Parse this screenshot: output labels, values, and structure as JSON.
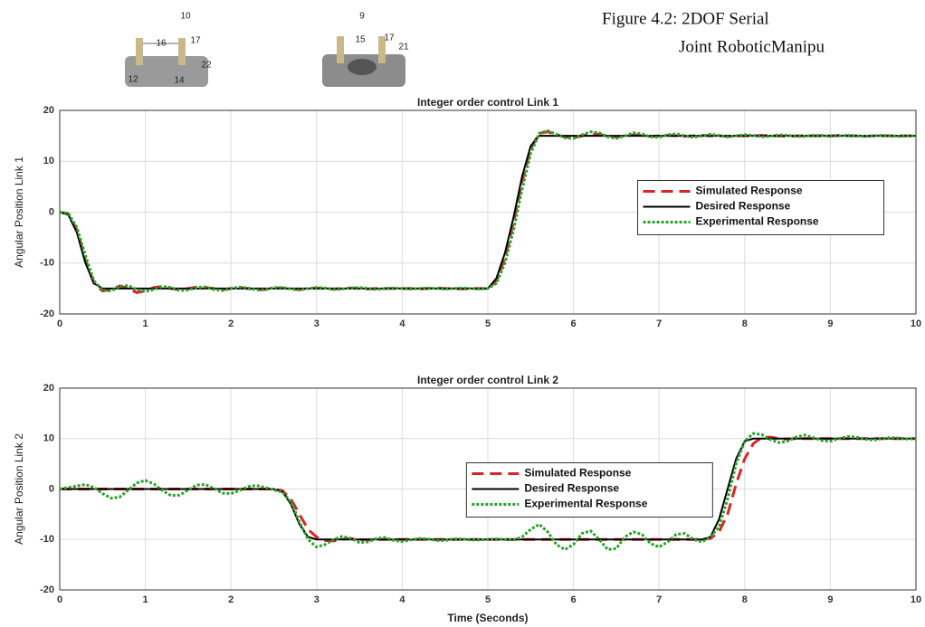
{
  "caption": [
    "Figure 4.2: 2DOF Serial",
    "Joint RoboticManipu"
  ],
  "figure_fragment": {
    "labels": [
      "10",
      "16",
      "17",
      "22",
      "12",
      "14",
      "9",
      "15",
      "17",
      "21"
    ]
  },
  "chart_data": [
    {
      "type": "line",
      "title": "Integer order control Link 1",
      "ylabel": "Angular Position Link 1",
      "x": [
        0,
        0.1,
        0.2,
        0.3,
        0.4,
        0.5,
        0.6,
        0.7,
        0.8,
        0.9,
        1,
        1.1,
        1.2,
        1.3,
        1.4,
        1.5,
        1.6,
        1.7,
        1.8,
        1.9,
        2,
        2.1,
        2.2,
        2.3,
        2.4,
        2.5,
        2.6,
        2.7,
        2.8,
        2.9,
        3,
        3.1,
        3.2,
        3.3,
        3.4,
        3.5,
        3.6,
        3.7,
        3.8,
        3.9,
        4,
        4.1,
        4.2,
        4.3,
        4.4,
        4.5,
        4.6,
        4.7,
        4.8,
        4.9,
        5,
        5.1,
        5.2,
        5.3,
        5.4,
        5.5,
        5.6,
        5.7,
        5.8,
        5.9,
        6,
        6.1,
        6.2,
        6.3,
        6.4,
        6.5,
        6.6,
        6.7,
        6.8,
        6.9,
        7,
        7.1,
        7.2,
        7.3,
        7.4,
        7.5,
        7.6,
        7.7,
        7.8,
        7.9,
        8,
        8.1,
        8.2,
        8.3,
        8.4,
        8.5,
        8.6,
        8.7,
        8.8,
        8.9,
        9,
        9.1,
        9.2,
        9.3,
        9.4,
        9.5,
        9.6,
        9.7,
        9.8,
        9.9,
        10
      ],
      "series": [
        {
          "name": "Simulated Response",
          "color": "#d62728",
          "linestyle": "dashed",
          "values": [
            0,
            -0.3,
            -3.5,
            -9.5,
            -14,
            -15.5,
            -15.2,
            -14.5,
            -15,
            -15.8,
            -15.5,
            -14.8,
            -14.6,
            -15,
            -15.3,
            -15,
            -14.7,
            -14.8,
            -15,
            -15.2,
            -15,
            -14.8,
            -15,
            -15.3,
            -15.2,
            -14.9,
            -14.9,
            -15.1,
            -15.2,
            -15,
            -14.9,
            -15,
            -15.1,
            -15,
            -14.9,
            -15,
            -15.1,
            -15,
            -15,
            -15,
            -15,
            -15,
            -15.1,
            -15,
            -14.9,
            -15,
            -15,
            -15.1,
            -15,
            -15,
            -15,
            -13.5,
            -9,
            -2,
            6,
            12.5,
            15.5,
            15.8,
            15.2,
            14.8,
            14.6,
            15,
            15.4,
            15.3,
            14.9,
            14.8,
            15,
            15.2,
            15.1,
            14.9,
            15,
            15.1,
            15,
            14.9,
            15,
            15.1,
            15,
            15,
            14.9,
            15,
            15,
            15,
            15.1,
            15,
            15,
            14.9,
            15,
            15,
            15,
            15,
            15,
            15.1,
            15,
            15,
            14.9,
            15,
            15,
            15,
            15,
            15,
            15
          ]
        },
        {
          "name": "Desired Response",
          "color": "#000000",
          "linestyle": "solid",
          "values": [
            0,
            -0.5,
            -4,
            -10,
            -14,
            -15,
            -15,
            -15,
            -15,
            -15,
            -15,
            -15,
            -15,
            -15,
            -15,
            -15,
            -15,
            -15,
            -15,
            -15,
            -15,
            -15,
            -15,
            -15,
            -15,
            -15,
            -15,
            -15,
            -15,
            -15,
            -15,
            -15,
            -15,
            -15,
            -15,
            -15,
            -15,
            -15,
            -15,
            -15,
            -15,
            -15,
            -15,
            -15,
            -15,
            -15,
            -15,
            -15,
            -15,
            -15,
            -15,
            -13,
            -8,
            -1,
            7,
            13,
            15,
            15,
            15,
            15,
            15,
            15,
            15,
            15,
            15,
            15,
            15,
            15,
            15,
            15,
            15,
            15,
            15,
            15,
            15,
            15,
            15,
            15,
            15,
            15,
            15,
            15,
            15,
            15,
            15,
            15,
            15,
            15,
            15,
            15,
            15,
            15,
            15,
            15,
            15,
            15,
            15,
            15,
            15,
            15,
            15
          ]
        },
        {
          "name": "Experimental Response",
          "color": "#2ca02c",
          "linestyle": "dotted",
          "values": [
            0,
            -0.2,
            -3,
            -8.5,
            -13.5,
            -15.3,
            -15.5,
            -14.6,
            -14.4,
            -15.2,
            -15.6,
            -15.2,
            -14.6,
            -14.8,
            -15.4,
            -15.3,
            -14.8,
            -14.7,
            -15.2,
            -15.4,
            -15,
            -14.7,
            -14.9,
            -15.3,
            -15.2,
            -14.8,
            -14.8,
            -15.1,
            -15.3,
            -15,
            -14.8,
            -14.9,
            -15.2,
            -15.1,
            -14.9,
            -14.8,
            -15,
            -15.2,
            -15,
            -14.9,
            -15,
            -15.1,
            -15,
            -14.9,
            -15,
            -15.1,
            -15,
            -14.9,
            -15,
            -15.1,
            -15,
            -14,
            -10,
            -3.5,
            4.5,
            11.5,
            15.5,
            16,
            15.3,
            14.6,
            14.5,
            15.2,
            15.8,
            15.6,
            14.8,
            14.5,
            15,
            15.6,
            15.4,
            14.8,
            14.7,
            15.2,
            15.4,
            15,
            14.7,
            15,
            15.3,
            15.1,
            14.8,
            15,
            15.2,
            15.1,
            14.8,
            14.9,
            15.2,
            15.1,
            14.9,
            14.9,
            15.1,
            15.1,
            14.9,
            15,
            15.1,
            15,
            14.9,
            15,
            15.1,
            15,
            14.9,
            15,
            15
          ]
        }
      ],
      "xlim": [
        0,
        10
      ],
      "xticks": [
        0,
        1,
        2,
        3,
        4,
        5,
        6,
        7,
        8,
        9,
        10
      ],
      "ylim": [
        -20,
        20
      ],
      "yticks": [
        -20,
        -10,
        0,
        10,
        20
      ],
      "grid": true,
      "legend": "center right"
    },
    {
      "type": "line",
      "title": "Integer order control Link 2",
      "ylabel": "Angular Position Link 2",
      "xlabel": "Time (Seconds)",
      "x": [
        0,
        0.1,
        0.2,
        0.3,
        0.4,
        0.5,
        0.6,
        0.7,
        0.8,
        0.9,
        1,
        1.1,
        1.2,
        1.3,
        1.4,
        1.5,
        1.6,
        1.7,
        1.8,
        1.9,
        2,
        2.1,
        2.2,
        2.3,
        2.4,
        2.5,
        2.6,
        2.7,
        2.8,
        2.9,
        3,
        3.1,
        3.2,
        3.3,
        3.4,
        3.5,
        3.6,
        3.7,
        3.8,
        3.9,
        4,
        4.1,
        4.2,
        4.3,
        4.4,
        4.5,
        4.6,
        4.7,
        4.8,
        4.9,
        5,
        5.1,
        5.2,
        5.3,
        5.4,
        5.5,
        5.6,
        5.7,
        5.8,
        5.9,
        6,
        6.1,
        6.2,
        6.3,
        6.4,
        6.5,
        6.6,
        6.7,
        6.8,
        6.9,
        7,
        7.1,
        7.2,
        7.3,
        7.4,
        7.5,
        7.6,
        7.7,
        7.8,
        7.9,
        8,
        8.1,
        8.2,
        8.3,
        8.4,
        8.5,
        8.6,
        8.7,
        8.8,
        8.9,
        9,
        9.1,
        9.2,
        9.3,
        9.4,
        9.5,
        9.6,
        9.7,
        9.8,
        9.9,
        10
      ],
      "series": [
        {
          "name": "Simulated Response",
          "color": "#d62728",
          "linestyle": "dashed",
          "values": [
            0,
            0,
            0,
            0,
            0,
            0,
            0,
            0,
            0,
            0,
            0,
            0,
            0,
            0,
            0,
            0,
            0,
            0,
            0,
            0,
            0,
            0,
            0,
            0,
            0,
            0,
            -0.3,
            -2,
            -5,
            -8,
            -9.5,
            -10.2,
            -10.3,
            -10,
            -9.8,
            -10,
            -10.1,
            -10,
            -10,
            -10,
            -10,
            -10,
            -10,
            -10,
            -10,
            -10,
            -10,
            -10,
            -10,
            -10,
            -10,
            -10,
            -10,
            -10,
            -10,
            -10,
            -10,
            -10,
            -10,
            -10,
            -10,
            -10,
            -10,
            -10,
            -10,
            -10,
            -10,
            -10,
            -10,
            -10,
            -10,
            -10,
            -10,
            -10,
            -10,
            -10,
            -9.8,
            -8.5,
            -5,
            1,
            6,
            9,
            10.2,
            10.3,
            10,
            9.9,
            10,
            10,
            10,
            10,
            10,
            10,
            10,
            10,
            10,
            10,
            10,
            10,
            10,
            10,
            10
          ]
        },
        {
          "name": "Desired Response",
          "color": "#000000",
          "linestyle": "solid",
          "values": [
            0,
            0,
            0,
            0,
            0,
            0,
            0,
            0,
            0,
            0,
            0,
            0,
            0,
            0,
            0,
            0,
            0,
            0,
            0,
            0,
            0,
            0,
            0,
            0,
            0,
            0,
            -0.5,
            -3,
            -7,
            -9.5,
            -10,
            -10,
            -10,
            -10,
            -10,
            -10,
            -10,
            -10,
            -10,
            -10,
            -10,
            -10,
            -10,
            -10,
            -10,
            -10,
            -10,
            -10,
            -10,
            -10,
            -10,
            -10,
            -10,
            -10,
            -10,
            -10,
            -10,
            -10,
            -10,
            -10,
            -10,
            -10,
            -10,
            -10,
            -10,
            -10,
            -10,
            -10,
            -10,
            -10,
            -10,
            -10,
            -10,
            -10,
            -10,
            -10,
            -9.5,
            -6,
            0,
            6,
            9.5,
            10,
            10,
            10,
            10,
            10,
            10,
            10,
            10,
            10,
            10,
            10,
            10,
            10,
            10,
            10,
            10,
            10,
            10,
            10,
            10
          ]
        },
        {
          "name": "Experimental Response",
          "color": "#2ca02c",
          "linestyle": "dotted",
          "values": [
            0,
            0.3,
            0.6,
            0.9,
            0.3,
            -0.9,
            -1.8,
            -1.6,
            -0.2,
            1.2,
            1.7,
            1,
            -0.3,
            -1.3,
            -1.2,
            -0.2,
            0.8,
            0.9,
            0.1,
            -0.8,
            -0.9,
            -0.3,
            0.5,
            0.7,
            0.3,
            -0.2,
            -0.6,
            -2.5,
            -6.5,
            -10,
            -11.5,
            -11,
            -10,
            -9.4,
            -9.8,
            -10.6,
            -10.5,
            -9.8,
            -9.6,
            -10.2,
            -10.4,
            -10.1,
            -9.8,
            -9.9,
            -10.2,
            -10.2,
            -9.9,
            -9.9,
            -10.1,
            -10.1,
            -10,
            -9.9,
            -10,
            -10.1,
            -9.5,
            -8,
            -7,
            -8.5,
            -11,
            -12,
            -11,
            -8.8,
            -8.3,
            -10,
            -12,
            -11.8,
            -9.5,
            -8.5,
            -9,
            -10.8,
            -11.5,
            -10.5,
            -9,
            -8.8,
            -10,
            -10.5,
            -9.5,
            -7.5,
            -2,
            5,
            9.5,
            11,
            10.8,
            9.8,
            9.2,
            9.5,
            10.3,
            10.7,
            10.2,
            9.6,
            9.5,
            10,
            10.4,
            10.3,
            9.9,
            9.7,
            10,
            10.2,
            10.1,
            9.9,
            10
          ]
        }
      ],
      "xlim": [
        0,
        10
      ],
      "xticks": [
        0,
        1,
        2,
        3,
        4,
        5,
        6,
        7,
        8,
        9,
        10
      ],
      "ylim": [
        -20,
        20
      ],
      "yticks": [
        -20,
        -10,
        0,
        10,
        20
      ],
      "grid": true,
      "legend": "center"
    }
  ]
}
